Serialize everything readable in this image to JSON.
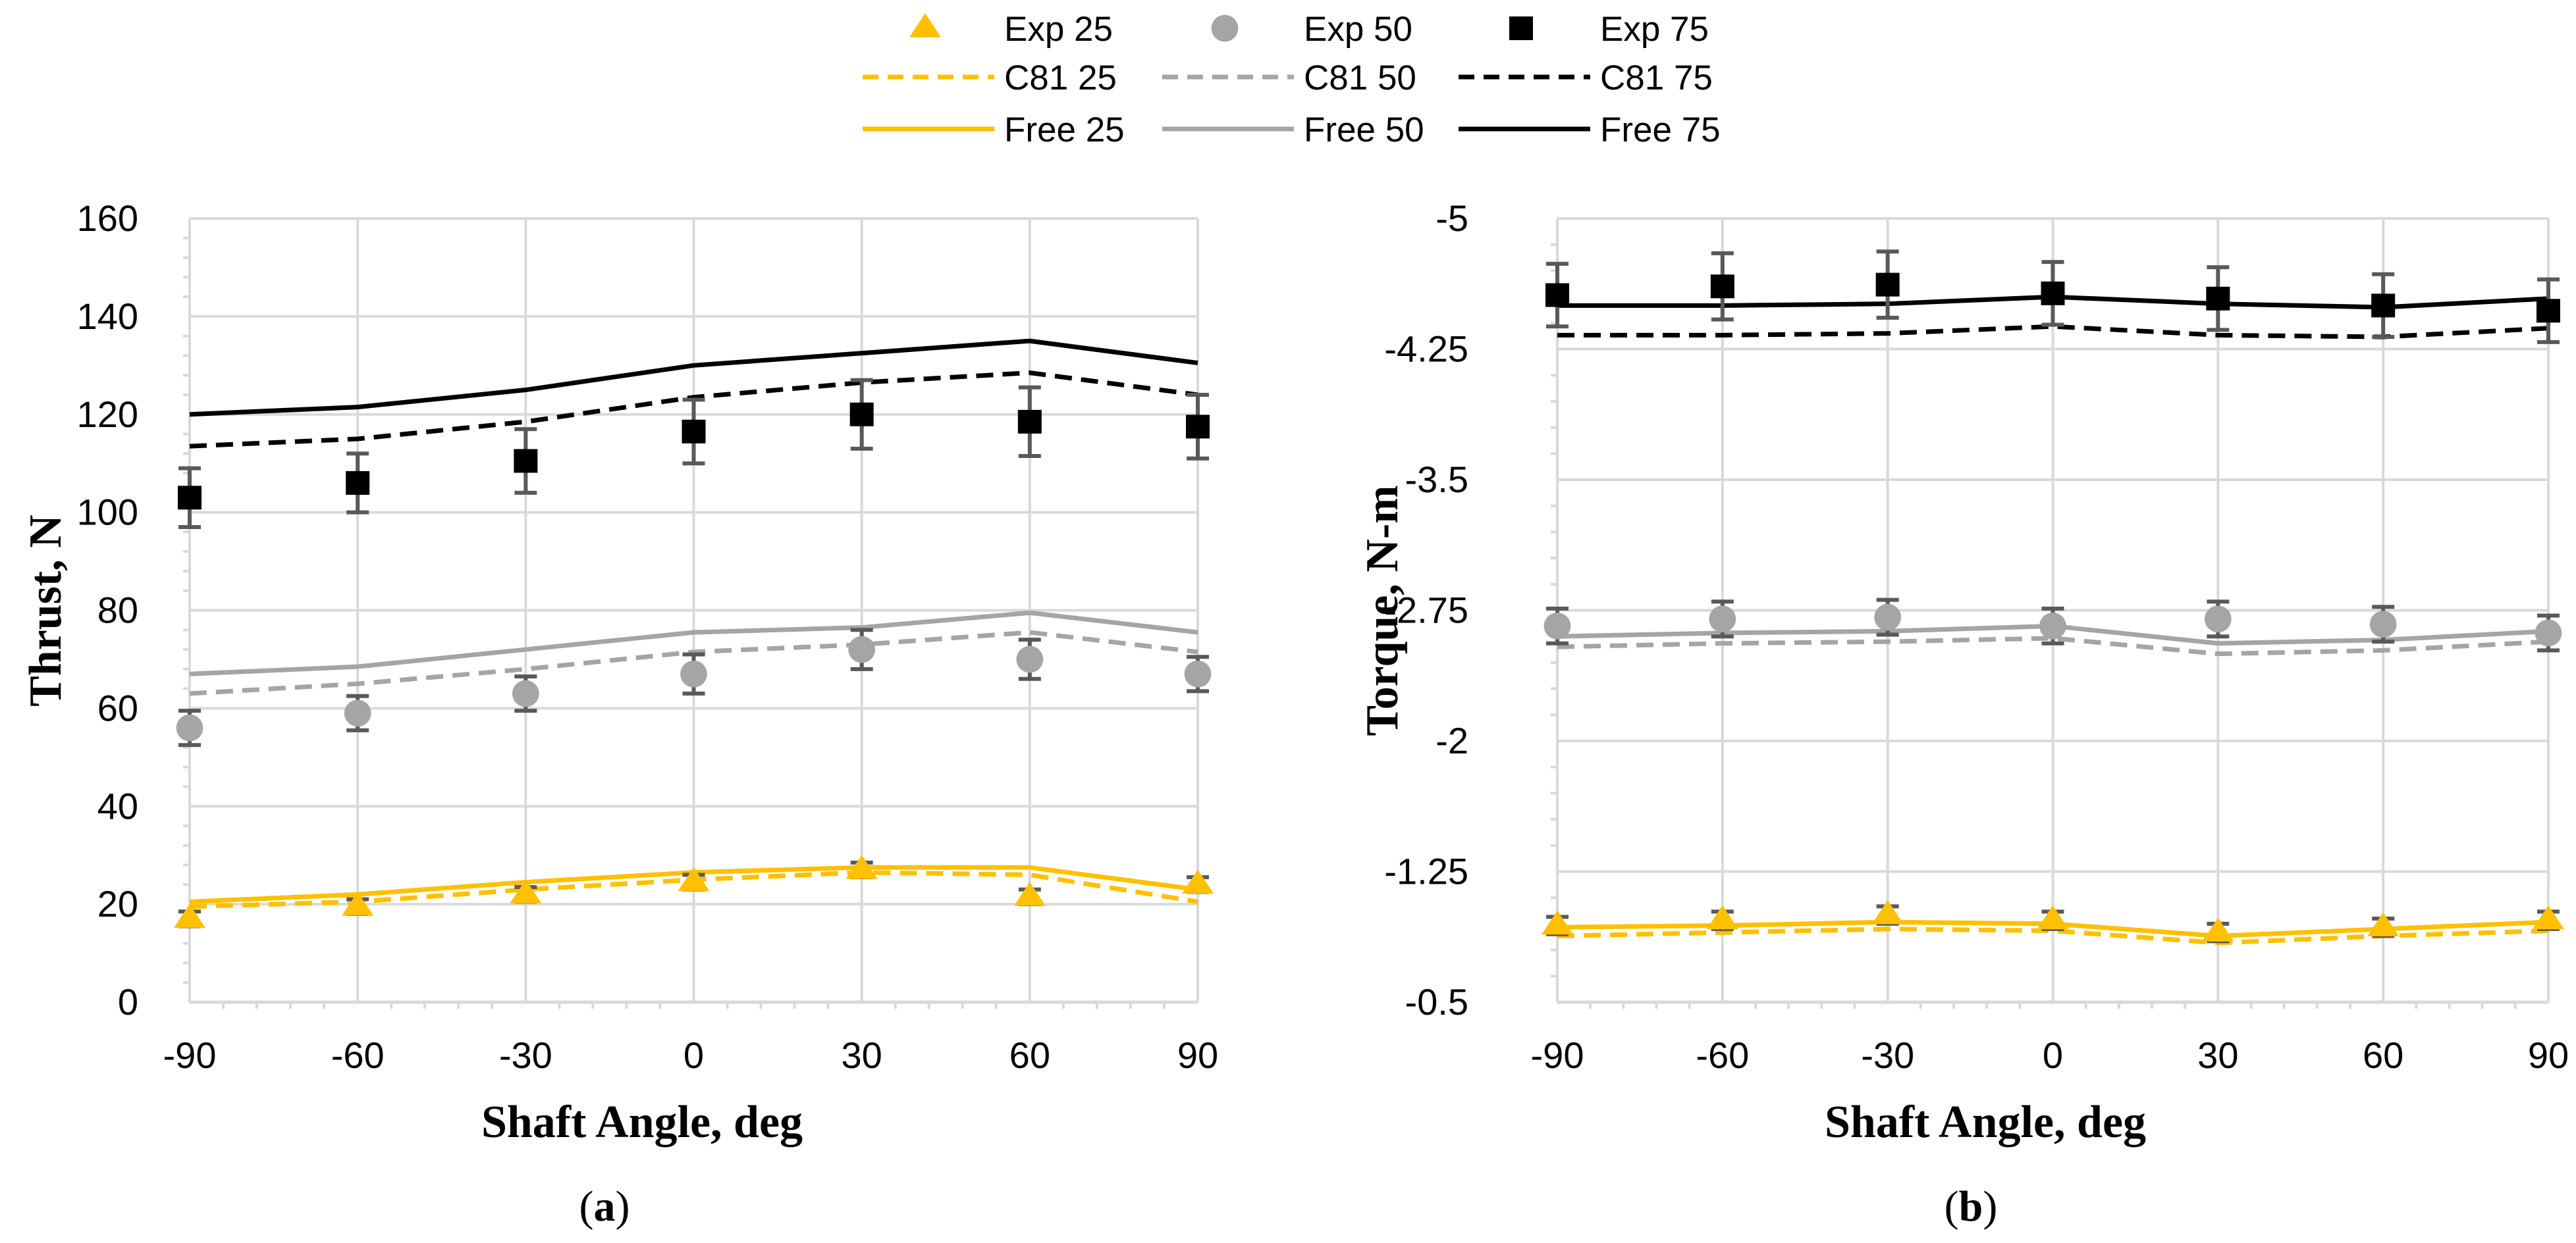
{
  "colors": {
    "exp25": "#FFC000",
    "exp50": "#A5A5A5",
    "exp75": "#000000",
    "grid": "#D9D9D9",
    "error_bar": "#595959"
  },
  "legend": [
    {
      "key": "exp25",
      "label": "Exp 25",
      "kind": "marker",
      "shape": "triangle"
    },
    {
      "key": "exp50",
      "label": "Exp 50",
      "kind": "marker",
      "shape": "circle"
    },
    {
      "key": "exp75",
      "label": "Exp 75",
      "kind": "marker",
      "shape": "square"
    },
    {
      "key": "c81_25",
      "label": "C81 25",
      "kind": "dashed",
      "color": "#FFC000"
    },
    {
      "key": "c81_50",
      "label": "C81 50",
      "kind": "dashed",
      "color": "#A5A5A5"
    },
    {
      "key": "c81_75",
      "label": "C81 75",
      "kind": "dashed",
      "color": "#000000"
    },
    {
      "key": "free_25",
      "label": "Free 25",
      "kind": "solid",
      "color": "#FFC000"
    },
    {
      "key": "free_50",
      "label": "Free 50",
      "kind": "solid",
      "color": "#A5A5A5"
    },
    {
      "key": "free_75",
      "label": "Free 75",
      "kind": "solid",
      "color": "#000000"
    }
  ],
  "chart_data": [
    {
      "id": "a",
      "panel_label": "a",
      "type": "line",
      "title": "",
      "xlabel": "Shaft Angle, deg",
      "ylabel": "Thrust, N",
      "x": [
        -90,
        -60,
        -30,
        0,
        30,
        60,
        90
      ],
      "x_ticks": [
        "-90",
        "-60",
        "-30",
        "0",
        "30",
        "60",
        "90"
      ],
      "ylim": [
        0,
        160
      ],
      "y_ticks": [
        0,
        20,
        40,
        60,
        80,
        100,
        120,
        140,
        160
      ],
      "y_tick_labels": [
        "0",
        "20",
        "40",
        "60",
        "80",
        "100",
        "120",
        "140",
        "160"
      ],
      "grid": true,
      "series": [
        {
          "name": "Free 75",
          "style": "solid",
          "color": "#000000",
          "values": [
            120,
            121.5,
            125,
            130,
            132.5,
            135,
            130.5
          ]
        },
        {
          "name": "C81 75",
          "style": "dashed",
          "color": "#000000",
          "values": [
            113.5,
            115,
            118.5,
            123.5,
            126.5,
            128.5,
            124
          ]
        },
        {
          "name": "Free 50",
          "style": "solid",
          "color": "#A5A5A5",
          "values": [
            67,
            68.5,
            72,
            75.5,
            76.5,
            79.5,
            75.5
          ]
        },
        {
          "name": "C81 50",
          "style": "dashed",
          "color": "#A5A5A5",
          "values": [
            63,
            65,
            68,
            71.5,
            73,
            75.5,
            71.5
          ]
        },
        {
          "name": "Free 25",
          "style": "solid",
          "color": "#FFC000",
          "values": [
            20.5,
            22,
            24.5,
            26.5,
            27.5,
            27.5,
            23
          ]
        },
        {
          "name": "C81 25",
          "style": "dashed",
          "color": "#FFC000",
          "values": [
            19.5,
            20.5,
            23,
            25,
            26.5,
            26,
            20.5
          ]
        },
        {
          "name": "Exp 75",
          "style": "marker",
          "marker": "square",
          "color": "#000000",
          "values": [
            103,
            106,
            110.5,
            116.5,
            120,
            118.5,
            117.5
          ],
          "error": [
            6,
            6,
            6.5,
            6.5,
            7,
            7,
            6.5
          ]
        },
        {
          "name": "Exp 50",
          "style": "marker",
          "marker": "circle",
          "color": "#A5A5A5",
          "values": [
            56,
            59,
            63,
            67,
            72,
            70,
            67
          ],
          "error": [
            3.5,
            3.5,
            3.5,
            4,
            4,
            4,
            3.5
          ]
        },
        {
          "name": "Exp 25",
          "style": "marker",
          "marker": "triangle",
          "color": "#FFC000",
          "values": [
            17,
            19.5,
            22,
            24.5,
            27,
            21.5,
            24
          ],
          "error": [
            1.5,
            1.5,
            1.5,
            1.5,
            1.5,
            1.5,
            1.5
          ]
        }
      ]
    },
    {
      "id": "b",
      "panel_label": "b",
      "type": "line",
      "title": "",
      "xlabel": "Shaft Angle, deg",
      "ylabel": "Torque, N-m",
      "x": [
        -90,
        -60,
        -30,
        0,
        30,
        60,
        90
      ],
      "x_ticks": [
        "-90",
        "-60",
        "-30",
        "0",
        "30",
        "60",
        "90"
      ],
      "ylim": [
        -0.5,
        -5
      ],
      "y_ticks": [
        -0.5,
        -1.25,
        -2,
        -2.75,
        -3.5,
        -4.25,
        -5
      ],
      "y_tick_labels": [
        "-0.5",
        "-1.25",
        "-2",
        "-2.75",
        "-3.5",
        "-4.25",
        "-5"
      ],
      "grid": true,
      "series": [
        {
          "name": "Free 75",
          "style": "solid",
          "color": "#000000",
          "values": [
            -4.5,
            -4.5,
            -4.51,
            -4.55,
            -4.51,
            -4.49,
            -4.54
          ]
        },
        {
          "name": "C81 75",
          "style": "dashed",
          "color": "#000000",
          "values": [
            -4.33,
            -4.33,
            -4.34,
            -4.38,
            -4.33,
            -4.32,
            -4.37
          ]
        },
        {
          "name": "Free 50",
          "style": "solid",
          "color": "#A5A5A5",
          "values": [
            -2.6,
            -2.62,
            -2.63,
            -2.66,
            -2.56,
            -2.58,
            -2.63
          ]
        },
        {
          "name": "C81 50",
          "style": "dashed",
          "color": "#A5A5A5",
          "values": [
            -2.54,
            -2.56,
            -2.57,
            -2.59,
            -2.5,
            -2.52,
            -2.57
          ]
        },
        {
          "name": "Free 25",
          "style": "solid",
          "color": "#FFC000",
          "values": [
            -0.93,
            -0.94,
            -0.96,
            -0.95,
            -0.88,
            -0.92,
            -0.96
          ]
        },
        {
          "name": "C81 25",
          "style": "dashed",
          "color": "#FFC000",
          "values": [
            -0.88,
            -0.9,
            -0.92,
            -0.91,
            -0.84,
            -0.88,
            -0.91
          ]
        },
        {
          "name": "Exp 75",
          "style": "marker",
          "marker": "square",
          "color": "#000000",
          "values": [
            -4.56,
            -4.61,
            -4.62,
            -4.57,
            -4.54,
            -4.5,
            -4.47
          ],
          "error": [
            0.18,
            0.19,
            0.19,
            0.18,
            0.18,
            0.18,
            0.18
          ]
        },
        {
          "name": "Exp 50",
          "style": "marker",
          "marker": "circle",
          "color": "#A5A5A5",
          "values": [
            -2.66,
            -2.7,
            -2.71,
            -2.66,
            -2.7,
            -2.67,
            -2.62
          ],
          "error": [
            0.1,
            0.1,
            0.1,
            0.1,
            0.1,
            0.1,
            0.1
          ]
        },
        {
          "name": "Exp 25",
          "style": "marker",
          "marker": "triangle",
          "color": "#FFC000",
          "values": [
            -0.94,
            -0.97,
            -1.0,
            -0.97,
            -0.9,
            -0.93,
            -0.97
          ],
          "error": [
            0.05,
            0.05,
            0.05,
            0.05,
            0.05,
            0.05,
            0.05
          ]
        }
      ]
    }
  ]
}
